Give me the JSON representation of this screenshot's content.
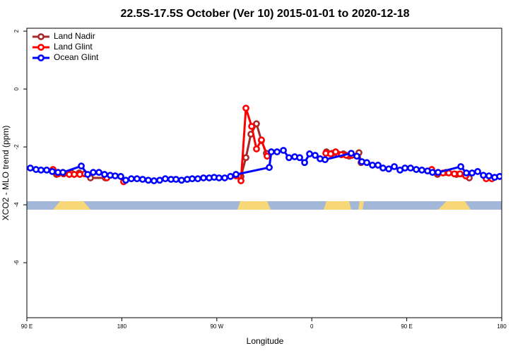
{
  "chart_data": {
    "type": "line",
    "title": "22.5S-17.5S October (Ver 10)   2015-01-01 to 2020-12-18",
    "xlabel": "Longitude",
    "ylabel": "XCO2 - MLO trend (ppm)",
    "xlim": [
      90,
      540
    ],
    "ylim": [
      -7.9,
      2.1
    ],
    "xticks": [
      {
        "value": 90,
        "label": "90 E"
      },
      180,
      {
        "value": 270,
        "label": "90 W"
      },
      {
        "value": 360,
        "label": "0"
      },
      {
        "value": 450,
        "label": "90 E"
      },
      {
        "value": 540,
        "label": "180"
      }
    ],
    "yticks": [
      2,
      0,
      -2,
      -4,
      -6
    ],
    "legend": "top-left",
    "series": [
      {
        "name": "Land Nadir",
        "color": "#a52a2a",
        "x": [
          118.1,
          124.8,
          132.2,
          139.6,
          150.3,
          164.3,
          null,
          292.9,
          297.6,
          302.3,
          307.6,
          312.3,
          317,
          null,
          373.9,
          379.3,
          384.6,
          390,
          395.4,
          404.7,
          406.7,
          null,
          479.1,
          487.1,
          497.1,
          509.2
        ],
        "values": [
          -2.95,
          -2.93,
          -2.9,
          -2.9,
          -3.07,
          -3.07,
          null,
          -3.02,
          -2.37,
          -1.56,
          -1.2,
          -1.78,
          -2.22,
          null,
          -2.17,
          -2.22,
          -2.24,
          -2.24,
          -2.32,
          -2.2,
          -2.54,
          null,
          -2.95,
          -2.88,
          -2.95,
          -3.07
        ]
      },
      {
        "name": "Land Glint",
        "color": "#ff0000",
        "x": [
          114.8,
          119.5,
          124.8,
          130.2,
          134.9,
          140.2,
          144.9,
          null,
          165.7,
          null,
          181.7,
          null,
          288.2,
          292.9,
          297.6,
          303,
          307.6,
          312.3,
          317.7,
          null,
          373.3,
          377.9,
          382.6,
          388,
          392.7,
          398,
          null,
          473.7,
          479.1,
          484.4,
          489.8,
          495.1,
          500.5,
          505.9,
          null,
          525.3,
          530.6
        ],
        "values": [
          -2.78,
          -2.93,
          -2.9,
          -2.95,
          -2.95,
          -2.95,
          -2.93,
          null,
          -3.07,
          null,
          -3.2,
          null,
          -3,
          -3.17,
          -0.66,
          -1.29,
          -2.07,
          -1.76,
          -2.32,
          null,
          -2.22,
          -2.24,
          -2.17,
          -2.27,
          -2.29,
          -2.29,
          null,
          -2.78,
          -2.9,
          -2.9,
          -2.9,
          -2.93,
          -2.93,
          -3,
          null,
          -3.1,
          -3.1
        ]
      },
      {
        "name": "Ocean Glint",
        "color": "#0000ff",
        "x": [
          93.3,
          98.7,
          103.4,
          108.8,
          114.1,
          119.5,
          124.2,
          141.6,
          147.6,
          152.9,
          158.3,
          163.6,
          169,
          173.7,
          179,
          183.7,
          189,
          194.4,
          199.7,
          205.1,
          210.5,
          215.9,
          221.2,
          226.6,
          231.3,
          236.6,
          242,
          246.7,
          252,
          257.4,
          262.8,
          267.5,
          272.1,
          277.5,
          282.9,
          288.2,
          319.7,
          321.7,
          327.1,
          333.1,
          338.4,
          343.8,
          348.5,
          353.2,
          357.9,
          363.2,
          367.9,
          372.6,
          397.4,
          402.7,
          407.4,
          412.1,
          417.5,
          422.8,
          427.5,
          432.9,
          438.2,
          443.6,
          448.3,
          453.6,
          459,
          464.3,
          469.7,
          474.4,
          479.7,
          501.2,
          506.5,
          511.9,
          517.2,
          522.6,
          527.9,
          533.3,
          538
        ],
        "values": [
          -2.73,
          -2.78,
          -2.8,
          -2.8,
          -2.85,
          -2.88,
          -2.88,
          -2.66,
          -2.95,
          -2.88,
          -2.88,
          -2.95,
          -2.98,
          -3,
          -3.02,
          -3.15,
          -3.1,
          -3.1,
          -3.12,
          -3.15,
          -3.17,
          -3.15,
          -3.1,
          -3.12,
          -3.12,
          -3.15,
          -3.12,
          -3.1,
          -3.1,
          -3.07,
          -3.07,
          -3.05,
          -3.07,
          -3.07,
          -3.02,
          -2.95,
          -2.71,
          -2.17,
          -2.17,
          -2.12,
          -2.37,
          -2.34,
          -2.37,
          -2.54,
          -2.24,
          -2.29,
          -2.41,
          -2.44,
          -2.22,
          -2.32,
          -2.51,
          -2.54,
          -2.63,
          -2.63,
          -2.73,
          -2.76,
          -2.68,
          -2.8,
          -2.73,
          -2.73,
          -2.78,
          -2.8,
          -2.83,
          -2.88,
          -2.88,
          -2.68,
          -2.9,
          -2.9,
          -2.85,
          -2.98,
          -3,
          -3.05,
          -3.02
        ]
      }
    ]
  }
}
